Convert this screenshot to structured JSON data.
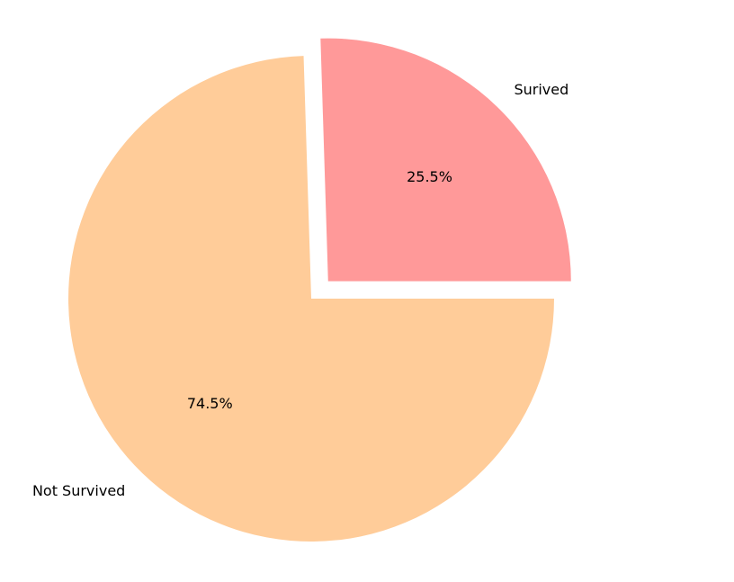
{
  "chart_data": {
    "type": "pie",
    "title": "",
    "slices": [
      {
        "label": "Surived",
        "value": 25.5,
        "pct_label": "25.5%",
        "color": "#ff9999",
        "exploded": true
      },
      {
        "label": "Not Survived",
        "value": 74.5,
        "pct_label": "74.5%",
        "color": "#ffcc99",
        "exploded": false
      }
    ],
    "start_angle_deg": 0,
    "direction": "counterclockwise",
    "legend": "none"
  }
}
